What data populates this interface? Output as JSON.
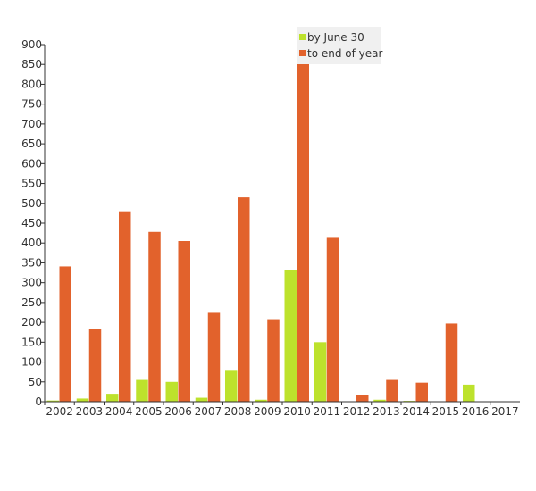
{
  "chart_data": {
    "type": "bar",
    "categories": [
      "2002",
      "2003",
      "2004",
      "2005",
      "2006",
      "2007",
      "2008",
      "2009",
      "2010",
      "2011",
      "2012",
      "2013",
      "2014",
      "2015",
      "2016",
      "2017"
    ],
    "series": [
      {
        "name": "by June 30",
        "color": "#bde22c",
        "values": [
          3,
          8,
          20,
          55,
          50,
          10,
          78,
          5,
          333,
          150,
          1,
          5,
          2,
          1,
          43,
          1
        ]
      },
      {
        "name": "to end of year",
        "color": "#e2622c",
        "values": [
          341,
          184,
          480,
          428,
          405,
          224,
          515,
          208,
          855,
          413,
          17,
          55,
          48,
          197,
          0,
          0
        ]
      }
    ],
    "ylim": [
      0,
      900
    ],
    "yticks": [
      0,
      50,
      100,
      150,
      200,
      250,
      300,
      350,
      400,
      450,
      500,
      550,
      600,
      650,
      700,
      750,
      800,
      850,
      900
    ],
    "grid": false,
    "legend_position": "top",
    "title": "",
    "xlabel": "",
    "ylabel": ""
  }
}
